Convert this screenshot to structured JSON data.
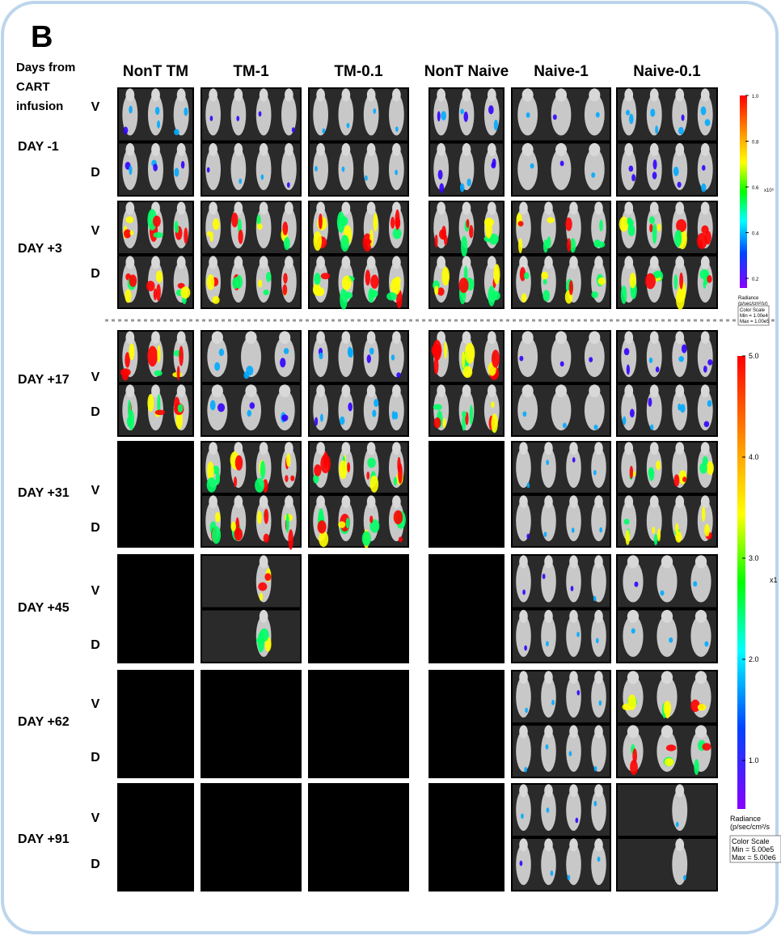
{
  "panel_label": "B",
  "row_header": [
    "Days from",
    "CART",
    "infusion"
  ],
  "columns": [
    "NonT TM",
    "TM-1",
    "TM-0.1",
    "NonT Naive",
    "Naive-1",
    "Naive-0.1"
  ],
  "rows": [
    {
      "label": "DAY -1",
      "views": [
        "V",
        "D"
      ]
    },
    {
      "label": "DAY +3",
      "views": [
        "V",
        "D"
      ]
    },
    {
      "label": "DAY +17",
      "views": [
        "V",
        "D"
      ]
    },
    {
      "label": "DAY +31",
      "views": [
        "V",
        "D"
      ]
    },
    {
      "label": "DAY +45",
      "views": [
        "V",
        "D"
      ]
    },
    {
      "label": "DAY +62",
      "views": [
        "V",
        "D"
      ]
    },
    {
      "label": "DAY +91",
      "views": [
        "V",
        "D"
      ]
    }
  ],
  "scales": [
    {
      "ticks": [
        "1.0",
        "0.8",
        "0.6",
        "0.4",
        "0.2"
      ],
      "unit": "x10⁵",
      "radiance": [
        "Radiance",
        "(p/sec/cm²/sr)"
      ],
      "color_scale": [
        "Color Scale",
        "Min = 1.00e4",
        "Max = 1.00e5"
      ]
    },
    {
      "ticks": [
        "5.0",
        "4.0",
        "3.0",
        "2.0",
        "1.0"
      ],
      "unit": "x1",
      "radiance": [
        "Radiance",
        "(p/sec/cm²/s"
      ],
      "color_scale": [
        "Color Scale",
        "Min = 5.00e5",
        "Max = 5.00e6"
      ]
    }
  ]
}
